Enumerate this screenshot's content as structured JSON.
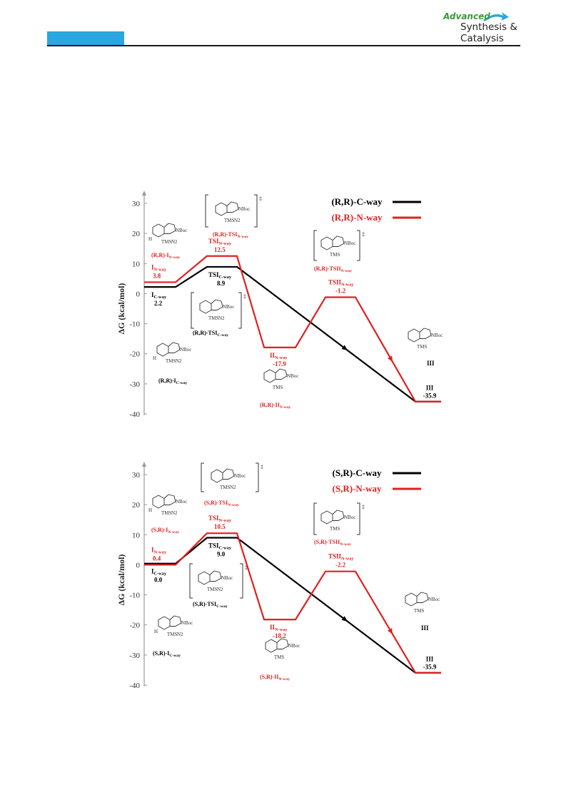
{
  "header": {
    "journal_line1": "Advanced",
    "journal_line2": "Synthesis &",
    "journal_line3": "Catalysis",
    "accent_color": "#2aa6e0",
    "logo_green": "#3a9a3a"
  },
  "chart_data": [
    {
      "type": "line",
      "ylabel": "ΔG (kcal/mol)",
      "ylim": [
        -40,
        30
      ],
      "yticks": [
        30,
        20,
        10,
        0,
        -10,
        -20,
        -30,
        -40
      ],
      "legend": [
        {
          "name": "(R,R)-C-way",
          "color": "#000000"
        },
        {
          "name": "(R,R)-N-way",
          "color": "#e02020"
        }
      ],
      "series": [
        {
          "name": "(R,R)-C-way",
          "color": "#000000",
          "points": [
            {
              "label": "I",
              "sub": "C-way",
              "value": 2.2
            },
            {
              "label": "TSI",
              "sub": "C-way",
              "value": 8.9
            },
            {
              "label": "III",
              "sub": "",
              "value": -35.9
            }
          ]
        },
        {
          "name": "(R,R)-N-way",
          "color": "#e02020",
          "points": [
            {
              "label": "I",
              "sub": "N-way",
              "value": 3.8
            },
            {
              "label": "TSI",
              "sub": "N-way",
              "value": 12.5
            },
            {
              "label": "II",
              "sub": "N-way",
              "value": -17.9
            },
            {
              "label": "TSII",
              "sub": "N-way",
              "value": -1.2
            },
            {
              "label": "III",
              "sub": "",
              "value": -35.9
            }
          ]
        }
      ],
      "value_labels": [
        "3.8",
        "2.2",
        "12.5",
        "8.9",
        "-17.9",
        "-1.2",
        "-35.9"
      ],
      "structure_labels": [
        "(R,R)-I",
        "(R,R)-TSI",
        "(R,R)-TSII",
        "(R,R)-TSI",
        "(R,R)-I",
        "(R,R)-II"
      ],
      "structure_subs": [
        "N-way",
        "N-way",
        "N-way",
        "C-way",
        "C-way",
        "N-way"
      ],
      "fragments": [
        "TMS",
        "NBoc",
        "N2",
        "H",
        "‡",
        "III"
      ]
    },
    {
      "type": "line",
      "ylabel": "ΔG (kcal/mol)",
      "ylim": [
        -40,
        30
      ],
      "yticks": [
        30,
        20,
        10,
        0,
        -10,
        -20,
        -30,
        -40
      ],
      "legend": [
        {
          "name": "(S,R)-C-way",
          "color": "#000000"
        },
        {
          "name": "(S,R)-N-way",
          "color": "#e02020"
        }
      ],
      "series": [
        {
          "name": "(S,R)-C-way",
          "color": "#000000",
          "points": [
            {
              "label": "I",
              "sub": "C-way",
              "value": 0.4
            },
            {
              "label": "TSI",
              "sub": "C-way",
              "value": 9.0
            },
            {
              "label": "III",
              "sub": "",
              "value": -35.9
            }
          ]
        },
        {
          "name": "(S,R)-N-way",
          "color": "#e02020",
          "points": [
            {
              "label": "I",
              "sub": "N-way",
              "value": 0.0
            },
            {
              "label": "TSI",
              "sub": "N-way",
              "value": 10.5
            },
            {
              "label": "II",
              "sub": "N-way",
              "value": -18.2
            },
            {
              "label": "TSII",
              "sub": "N-way",
              "value": -2.2
            },
            {
              "label": "III",
              "sub": "",
              "value": -35.9
            }
          ]
        }
      ],
      "value_labels": [
        "0.4",
        "0.0",
        "10.5",
        "9.0",
        "-18.2",
        "-2.2",
        "-35.9"
      ],
      "structure_labels": [
        "(S,R)-TSI",
        "(S,R)-I",
        "(S,R)-TSII",
        "(S,R)-TSI",
        "(S,R)-I",
        "(S,R)-II"
      ],
      "structure_subs": [
        "N-way",
        "N-way",
        "N-way",
        "C-way",
        "C-way",
        "N-way"
      ],
      "fragments": [
        "TMS",
        "NBoc",
        "N2",
        "H",
        "‡",
        "III"
      ]
    }
  ]
}
